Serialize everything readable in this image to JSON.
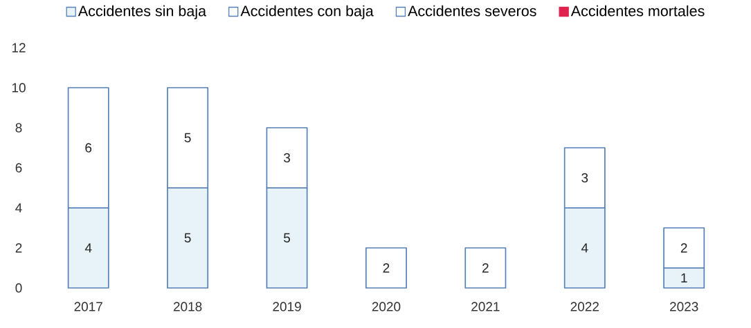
{
  "chart_data": {
    "type": "bar",
    "stacked": true,
    "categories": [
      "2017",
      "2018",
      "2019",
      "2020",
      "2021",
      "2022",
      "2023"
    ],
    "series": [
      {
        "name": "Accidentes sin baja",
        "color": "#e8f2f9",
        "values": [
          4,
          5,
          5,
          null,
          null,
          4,
          1
        ]
      },
      {
        "name": "Accidentes con baja",
        "color": "#ffffff",
        "values": [
          6,
          5,
          3,
          2,
          2,
          3,
          2
        ]
      },
      {
        "name": "Accidentes severos",
        "color": "#ffffff",
        "values": [
          null,
          null,
          null,
          null,
          null,
          null,
          null
        ]
      },
      {
        "name": "Accidentes mortales",
        "color": "#e0234e",
        "values": [
          null,
          null,
          null,
          null,
          null,
          null,
          null
        ]
      }
    ],
    "ylim": [
      0,
      12
    ],
    "yticks": [
      0,
      2,
      4,
      6,
      8,
      10,
      12
    ],
    "data_labels": true,
    "legend": "top"
  }
}
